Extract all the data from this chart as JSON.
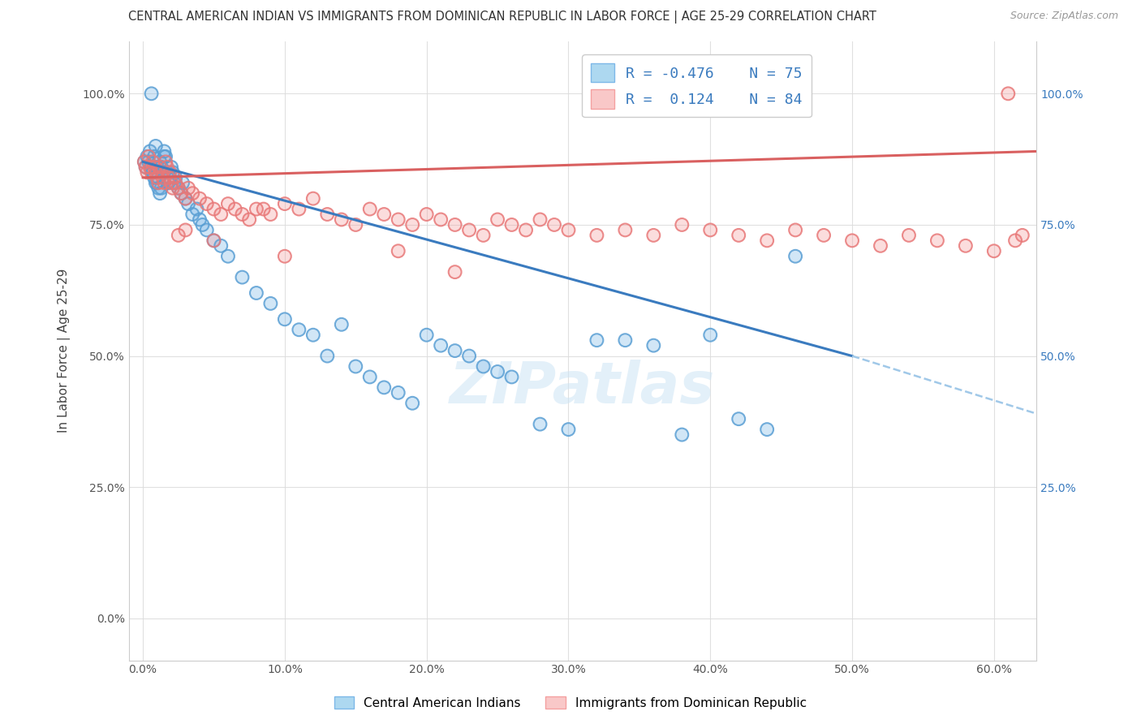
{
  "title": "CENTRAL AMERICAN INDIAN VS IMMIGRANTS FROM DOMINICAN REPUBLIC IN LABOR FORCE | AGE 25-29 CORRELATION CHART",
  "source": "Source: ZipAtlas.com",
  "xlabel_vals": [
    0,
    10,
    20,
    30,
    40,
    50,
    60
  ],
  "ylabel_vals": [
    0,
    25,
    50,
    75,
    100
  ],
  "xlim": [
    -1,
    63
  ],
  "ylim": [
    -8,
    110
  ],
  "blue_R": -0.476,
  "blue_N": 75,
  "pink_R": 0.124,
  "pink_N": 84,
  "blue_color": "#7db8e8",
  "pink_color": "#f4a0a0",
  "blue_edge_color": "#5a9fd4",
  "pink_edge_color": "#e87878",
  "blue_trend_color": "#3a7bbf",
  "pink_trend_color": "#d96060",
  "blue_dash_color": "#a0c8e8",
  "watermark": "ZIPatlas",
  "legend_label_blue": "Central American Indians",
  "legend_label_pink": "Immigrants from Dominican Republic",
  "blue_trend_x0": 0,
  "blue_trend_y0": 87,
  "blue_trend_x1": 50,
  "blue_trend_y1": 50,
  "blue_dash_x0": 50,
  "blue_dash_y0": 50,
  "blue_dash_x1": 63,
  "blue_dash_y1": 39,
  "pink_trend_x0": 0,
  "pink_trend_y0": 84,
  "pink_trend_x1": 63,
  "pink_trend_y1": 89,
  "blue_scatter_x": [
    0.1,
    0.2,
    0.3,
    0.4,
    0.5,
    0.6,
    0.7,
    0.8,
    0.9,
    1.0,
    1.1,
    1.2,
    1.3,
    1.4,
    1.5,
    1.6,
    1.7,
    1.8,
    1.9,
    2.0,
    2.1,
    2.2,
    2.3,
    2.5,
    2.7,
    3.0,
    3.2,
    3.5,
    4.0,
    4.5,
    5.0,
    5.5,
    6.0,
    7.0,
    8.0,
    9.0,
    10.0,
    11.0,
    12.0,
    13.0,
    14.0,
    15.0,
    16.0,
    17.0,
    18.0,
    19.0,
    20.0,
    21.0,
    22.0,
    23.0,
    24.0,
    25.0,
    26.0,
    28.0,
    30.0,
    32.0,
    34.0,
    36.0,
    38.0,
    40.0,
    42.0,
    44.0,
    46.0,
    3.8,
    4.2,
    2.8,
    1.5,
    0.6,
    0.7,
    0.8,
    0.9,
    1.0,
    1.1,
    1.2,
    1.3
  ],
  "blue_scatter_y": [
    87,
    86,
    88,
    87,
    89,
    100,
    85,
    88,
    90,
    86,
    84,
    87,
    86,
    85,
    89,
    88,
    85,
    83,
    84,
    86,
    85,
    83,
    84,
    82,
    81,
    80,
    79,
    77,
    76,
    74,
    72,
    71,
    69,
    65,
    62,
    60,
    57,
    55,
    54,
    50,
    56,
    48,
    46,
    44,
    43,
    41,
    54,
    52,
    51,
    50,
    48,
    47,
    46,
    37,
    36,
    53,
    53,
    52,
    35,
    54,
    38,
    36,
    69,
    78,
    75,
    83,
    88,
    86,
    85,
    84,
    83,
    83,
    82,
    81,
    82
  ],
  "pink_scatter_x": [
    0.1,
    0.2,
    0.3,
    0.4,
    0.5,
    0.6,
    0.7,
    0.8,
    0.9,
    1.0,
    1.1,
    1.2,
    1.3,
    1.4,
    1.5,
    1.6,
    1.7,
    1.8,
    1.9,
    2.0,
    2.1,
    2.2,
    2.3,
    2.5,
    2.7,
    3.0,
    3.2,
    3.5,
    4.0,
    4.5,
    5.0,
    5.5,
    6.0,
    6.5,
    7.0,
    7.5,
    8.0,
    9.0,
    10.0,
    11.0,
    12.0,
    13.0,
    14.0,
    15.0,
    16.0,
    17.0,
    18.0,
    19.0,
    20.0,
    21.0,
    22.0,
    23.0,
    24.0,
    25.0,
    26.0,
    27.0,
    28.0,
    29.0,
    30.0,
    32.0,
    34.0,
    36.0,
    38.0,
    40.0,
    42.0,
    44.0,
    46.0,
    48.0,
    50.0,
    52.0,
    54.0,
    56.0,
    58.0,
    60.0,
    61.5,
    62.0,
    3.0,
    2.5,
    5.0,
    8.5,
    10.0,
    18.0,
    22.0,
    61.0
  ],
  "pink_scatter_y": [
    87,
    86,
    85,
    88,
    86,
    85,
    87,
    86,
    85,
    84,
    83,
    86,
    85,
    84,
    83,
    87,
    86,
    84,
    85,
    83,
    82,
    84,
    83,
    82,
    81,
    80,
    82,
    81,
    80,
    79,
    78,
    77,
    79,
    78,
    77,
    76,
    78,
    77,
    79,
    78,
    80,
    77,
    76,
    75,
    78,
    77,
    76,
    75,
    77,
    76,
    75,
    74,
    73,
    76,
    75,
    74,
    76,
    75,
    74,
    73,
    74,
    73,
    75,
    74,
    73,
    72,
    74,
    73,
    72,
    71,
    73,
    72,
    71,
    70,
    72,
    73,
    74,
    73,
    72,
    78,
    69,
    70,
    66,
    100
  ]
}
